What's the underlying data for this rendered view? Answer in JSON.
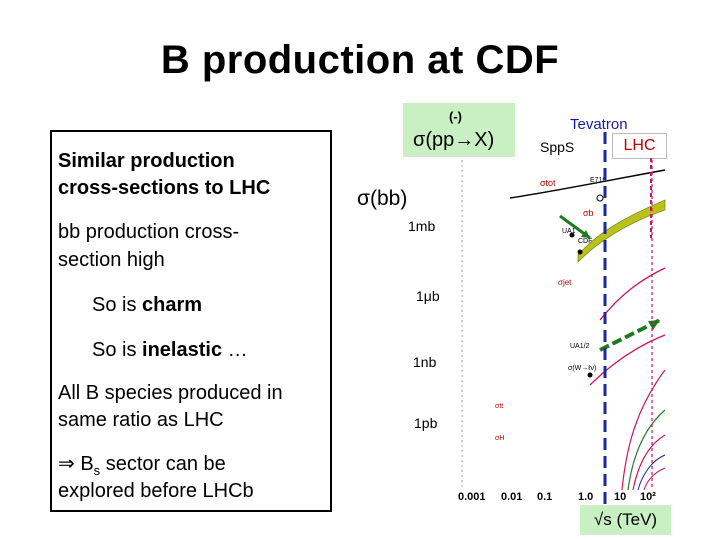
{
  "title": "B production at CDF",
  "left_panel": {
    "line1a": "Similar production",
    "line1b": "cross-sections to LHC",
    "line2a": "bb production cross-",
    "line2b": "section high",
    "charm_prefix": "So is ",
    "charm_word": "charm",
    "inelastic_prefix": "So is ",
    "inelastic_word": "inelastic",
    "inelastic_suffix": " …",
    "line3a": "All B species produced in",
    "line3b": "same ratio as LHC",
    "arrow": "⇒ B",
    "sub": "s",
    "line4a_rest": " sector can be",
    "line4b": "explored before LHCb"
  },
  "plot": {
    "sigma_label": "σ(pp→X)",
    "pbar_mark": "(-)",
    "sigma_bb": "σ(bb)",
    "y_labels": [
      "1mb",
      "1μb",
      "1nb",
      "1pb"
    ],
    "tevatron": "Tevatron",
    "spps": "SppS",
    "lhc": "LHC",
    "x_ticks": [
      "0.001",
      "0.01",
      "0.1",
      "1.0",
      "10",
      "10²"
    ],
    "x_axis": "√s (TeV)",
    "curve_labels": [
      "σtot",
      "E710",
      "σb",
      "CDF",
      "UA1",
      "σjet",
      "σ(W→ℓν)",
      "UA1/2",
      "σtt",
      "σH"
    ],
    "colors": {
      "tevatron_line": "#1a2a9a",
      "band": "#b8c21a",
      "arrow": "#1f7a1f",
      "curves": "#d01060"
    }
  }
}
